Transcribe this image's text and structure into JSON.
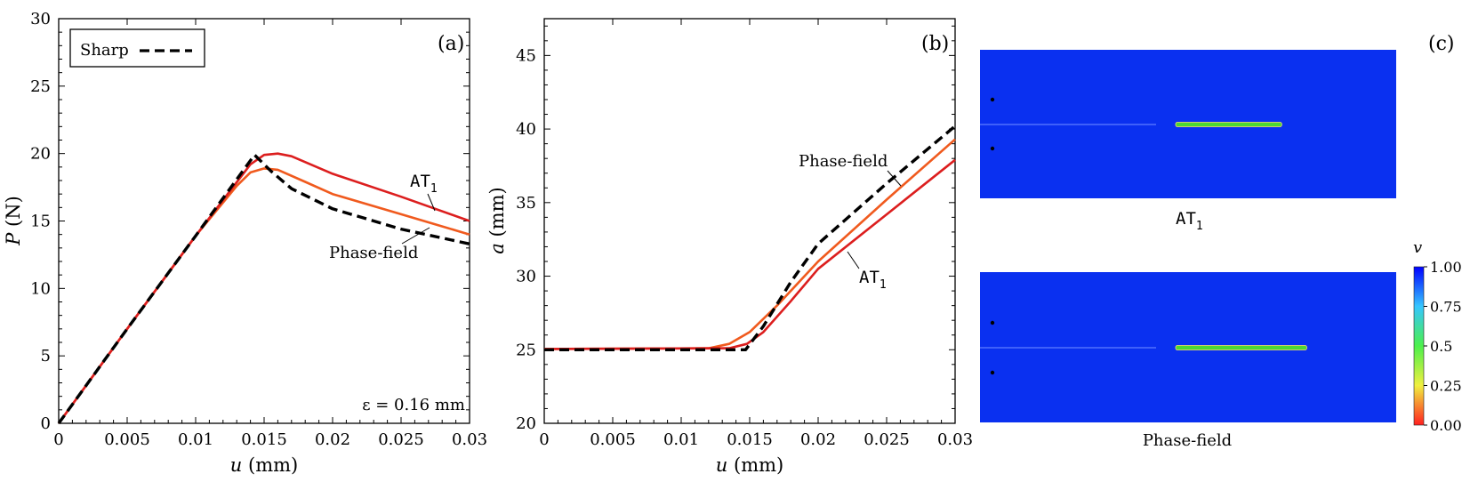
{
  "chart_data": [
    {
      "panel_label": "(a)",
      "type": "line",
      "xlabel_var": "u",
      "xlabel_unit": "(mm)",
      "ylabel_var": "P",
      "ylabel_unit": "(N)",
      "xlim": [
        0,
        0.03
      ],
      "ylim": [
        0,
        30
      ],
      "xticks": [
        0,
        0.005,
        0.01,
        0.015,
        0.02,
        0.025,
        0.03
      ],
      "xtick_labels": [
        "0",
        "0.005",
        "0.01",
        "0.015",
        "0.02",
        "0.025",
        "0.03"
      ],
      "yticks": [
        0,
        5,
        10,
        15,
        20,
        25,
        30
      ],
      "ytick_labels": [
        "0",
        "5",
        "10",
        "15",
        "20",
        "25",
        "30"
      ],
      "legend": [
        {
          "label": "Sharp",
          "style": "dashed",
          "color": "#000000"
        }
      ],
      "annotation_text": "ε = 0.16 mm",
      "series": [
        {
          "name": "Sharp",
          "label": "",
          "color": "#000000",
          "dash": true,
          "x": [
            0,
            0.005,
            0.01,
            0.0143,
            0.0155,
            0.017,
            0.02,
            0.025,
            0.03
          ],
          "y": [
            0,
            7.0,
            13.9,
            19.9,
            18.7,
            17.4,
            15.9,
            14.4,
            13.3
          ]
        },
        {
          "name": "Phase-field",
          "label": "Phase-field",
          "color": "#f05a1e",
          "dash": false,
          "x": [
            0,
            0.005,
            0.01,
            0.013,
            0.014,
            0.015,
            0.016,
            0.018,
            0.02,
            0.025,
            0.03
          ],
          "y": [
            0,
            7.0,
            13.9,
            17.6,
            18.6,
            18.9,
            18.8,
            17.9,
            17.0,
            15.5,
            14.0
          ]
        },
        {
          "name": "AT1",
          "label": "AT",
          "label_sub": "1",
          "color": "#dc1e1e",
          "dash": false,
          "x": [
            0,
            0.005,
            0.01,
            0.014,
            0.015,
            0.016,
            0.017,
            0.02,
            0.025,
            0.03
          ],
          "y": [
            0,
            7.0,
            13.9,
            19.2,
            19.9,
            20.0,
            19.8,
            18.5,
            16.8,
            15.0
          ]
        }
      ]
    },
    {
      "panel_label": "(b)",
      "type": "line",
      "xlabel_var": "u",
      "xlabel_unit": "(mm)",
      "ylabel_var": "a",
      "ylabel_unit": "(mm)",
      "xlim": [
        0,
        0.03
      ],
      "ylim": [
        20,
        47.5
      ],
      "xticks": [
        0,
        0.005,
        0.01,
        0.015,
        0.02,
        0.025,
        0.03
      ],
      "xtick_labels": [
        "0",
        "0.005",
        "0.01",
        "0.015",
        "0.02",
        "0.025",
        "0.03"
      ],
      "yticks": [
        20,
        25,
        30,
        35,
        40,
        45
      ],
      "ytick_labels": [
        "20",
        "25",
        "30",
        "35",
        "40",
        "45"
      ],
      "series": [
        {
          "name": "Sharp",
          "label": "",
          "color": "#000000",
          "dash": true,
          "x": [
            0,
            0.0147,
            0.016,
            0.018,
            0.02,
            0.025,
            0.03
          ],
          "y": [
            25,
            25,
            26.6,
            29.6,
            32.2,
            36.3,
            40.2
          ]
        },
        {
          "name": "Phase-field",
          "label": "Phase-field",
          "color": "#f05a1e",
          "dash": false,
          "x": [
            0,
            0.012,
            0.0135,
            0.015,
            0.017,
            0.02,
            0.025,
            0.03
          ],
          "y": [
            25.05,
            25.1,
            25.4,
            26.2,
            28.0,
            31.0,
            35.2,
            39.3
          ]
        },
        {
          "name": "AT1",
          "label": "AT",
          "label_sub": "1",
          "color": "#dc1e1e",
          "dash": false,
          "x": [
            0,
            0.0135,
            0.0148,
            0.016,
            0.018,
            0.02,
            0.025,
            0.03
          ],
          "y": [
            25.05,
            25.1,
            25.4,
            26.2,
            28.3,
            30.5,
            34.2,
            37.9
          ]
        }
      ]
    },
    {
      "panel_label": "(c)",
      "type": "heatmap",
      "colorbar_title": "v",
      "colorbar_range": [
        0,
        1
      ],
      "colorbar_ticks": [
        "1.00",
        "0.75",
        "0.5",
        "0.25",
        "0.00"
      ],
      "background_color": "#0a30f0",
      "crack_color": "#4cd832",
      "colorbar_colors": [
        "#0000ff",
        "#36c6ff",
        "#4cf04c",
        "#f0f040",
        "#ff2020"
      ],
      "images": [
        {
          "caption": "AT",
          "caption_sub": "1",
          "crack_start_fraction": 0.47,
          "crack_end_fraction": 0.725
        },
        {
          "caption": "Phase-field",
          "caption_sub": "",
          "crack_start_fraction": 0.47,
          "crack_end_fraction": 0.785
        }
      ]
    }
  ]
}
